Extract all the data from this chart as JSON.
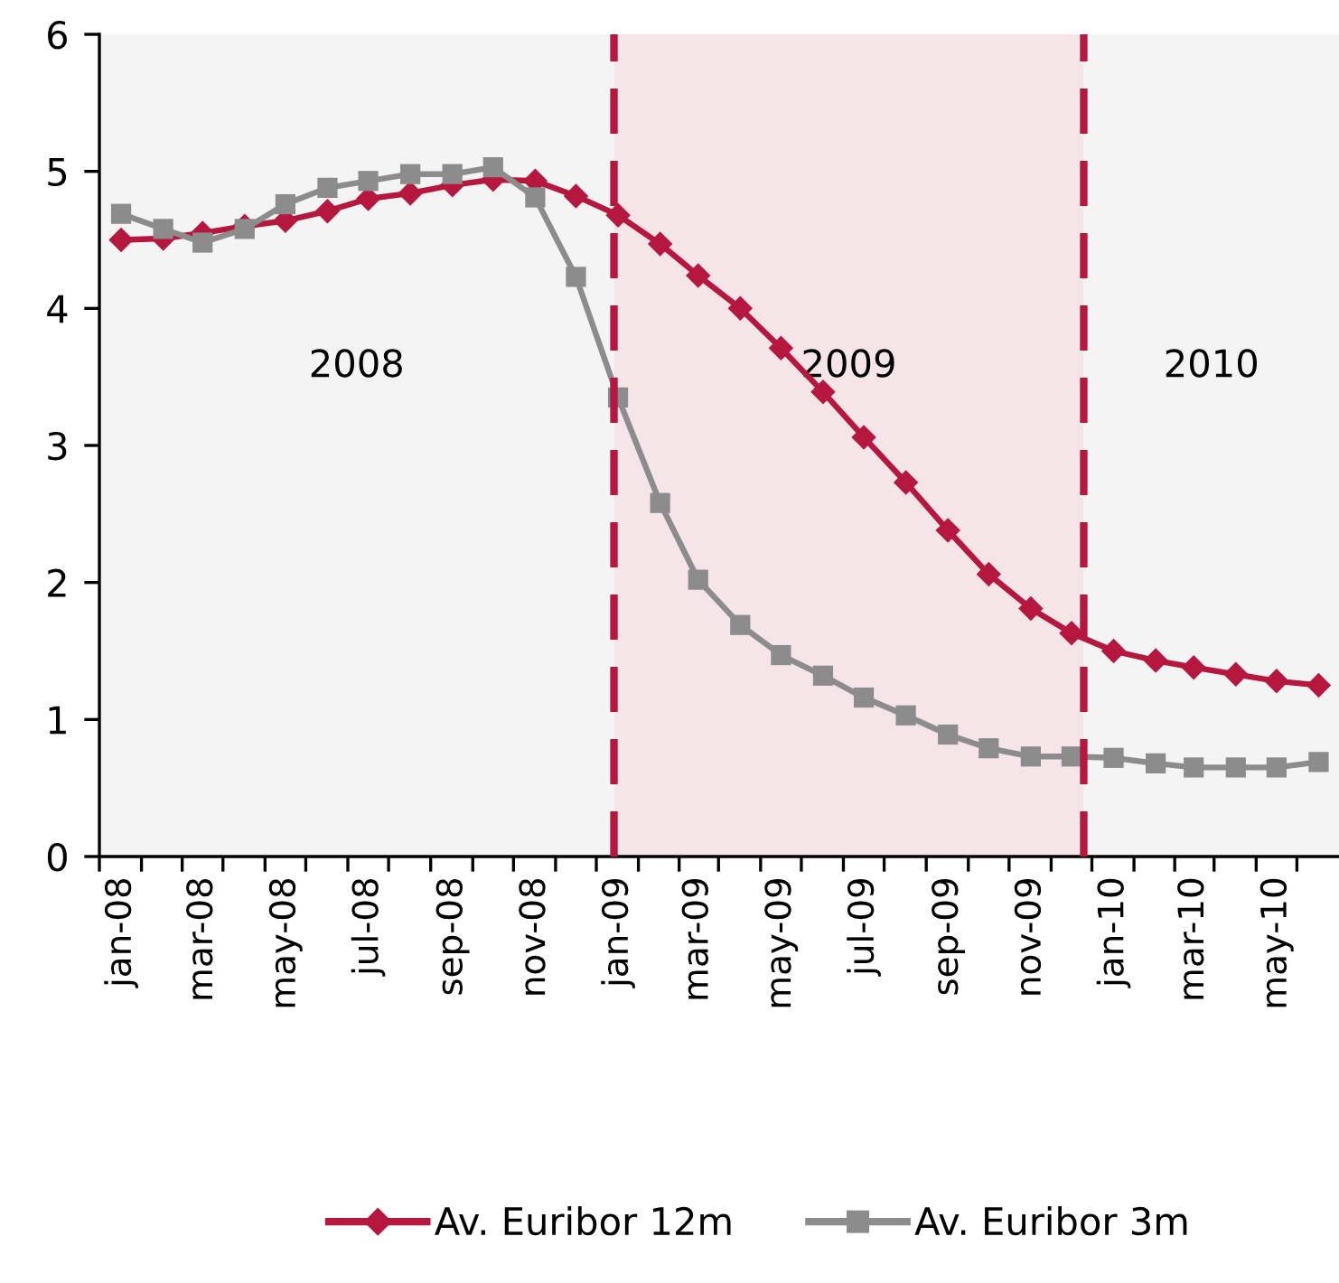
{
  "chart_data": {
    "type": "line",
    "x": [
      "2008-01",
      "2008-02",
      "2008-03",
      "2008-04",
      "2008-05",
      "2008-06",
      "2008-07",
      "2008-08",
      "2008-09",
      "2008-10",
      "2008-11",
      "2008-12",
      "2009-01",
      "2009-02",
      "2009-03",
      "2009-04",
      "2009-05",
      "2009-06",
      "2009-07",
      "2009-08",
      "2009-09",
      "2009-10",
      "2009-11",
      "2009-12",
      "2010-01",
      "2010-02",
      "2010-03",
      "2010-04",
      "2010-05",
      "2010-06"
    ],
    "series": [
      {
        "name": "Av. Euribor 12m",
        "color": "#b5173f",
        "marker": "diamond",
        "values": [
          4.5,
          4.51,
          4.55,
          4.6,
          4.64,
          4.71,
          4.8,
          4.84,
          4.9,
          4.94,
          4.93,
          4.82,
          4.68,
          4.47,
          4.24,
          4.0,
          3.71,
          3.39,
          3.06,
          2.73,
          2.38,
          2.06,
          1.81,
          1.63,
          1.5,
          1.43,
          1.38,
          1.33,
          1.28,
          1.25
        ]
      },
      {
        "name": "Av. Euribor 3m",
        "color": "#8c8c8c",
        "marker": "square",
        "values": [
          4.69,
          4.58,
          4.48,
          4.58,
          4.76,
          4.88,
          4.93,
          4.98,
          4.98,
          5.03,
          4.81,
          4.23,
          3.35,
          2.58,
          2.02,
          1.69,
          1.47,
          1.32,
          1.16,
          1.03,
          0.89,
          0.79,
          0.73,
          0.73,
          0.72,
          0.68,
          0.65,
          0.65,
          0.65,
          0.69
        ]
      }
    ],
    "xlim": [
      "2007-12-16",
      "2010-06-16"
    ],
    "xticks": [
      {
        "value": "2008-01",
        "label": "jan-08"
      },
      {
        "value": "2008-03",
        "label": "mar-08"
      },
      {
        "value": "2008-05",
        "label": "may-08"
      },
      {
        "value": "2008-07",
        "label": "jul-08"
      },
      {
        "value": "2008-09",
        "label": "sep-08"
      },
      {
        "value": "2008-11",
        "label": "nov-08"
      },
      {
        "value": "2009-01",
        "label": "jan-09"
      },
      {
        "value": "2009-03",
        "label": "mar-09"
      },
      {
        "value": "2009-05",
        "label": "may-09"
      },
      {
        "value": "2009-07",
        "label": "jul-09"
      },
      {
        "value": "2009-09",
        "label": "sep-09"
      },
      {
        "value": "2009-11",
        "label": "nov-09"
      },
      {
        "value": "2010-01",
        "label": "jan-10"
      },
      {
        "value": "2010-03",
        "label": "mar-10"
      },
      {
        "value": "2010-05",
        "label": "may-10"
      },
      {
        "value": "2007-12-16",
        "label": null
      },
      {
        "value": "2008-01-16",
        "label": null
      },
      {
        "value": "2008-02-15",
        "label": null
      },
      {
        "value": "2008-03-16",
        "label": null
      },
      {
        "value": "2008-04-16",
        "label": null
      },
      {
        "value": "2008-05-16",
        "label": null
      },
      {
        "value": "2008-06-16",
        "label": null
      },
      {
        "value": "2008-07-16",
        "label": null
      },
      {
        "value": "2008-08-16",
        "label": null
      },
      {
        "value": "2008-09-16",
        "label": null
      },
      {
        "value": "2008-10-16",
        "label": null
      },
      {
        "value": "2008-11-16",
        "label": null
      },
      {
        "value": "2008-12-16",
        "label": null
      },
      {
        "value": "2009-01-16",
        "label": null
      },
      {
        "value": "2009-02-15",
        "label": null
      },
      {
        "value": "2009-03-16",
        "label": null
      },
      {
        "value": "2009-04-16",
        "label": null
      },
      {
        "value": "2009-05-16",
        "label": null
      },
      {
        "value": "2009-06-16",
        "label": null
      },
      {
        "value": "2009-07-16",
        "label": null
      },
      {
        "value": "2009-08-16",
        "label": null
      },
      {
        "value": "2009-09-16",
        "label": null
      },
      {
        "value": "2009-10-16",
        "label": null
      },
      {
        "value": "2009-11-16",
        "label": null
      },
      {
        "value": "2009-12-16",
        "label": null
      },
      {
        "value": "2010-01-16",
        "label": null
      },
      {
        "value": "2010-02-15",
        "label": null
      },
      {
        "value": "2010-03-16",
        "label": null
      },
      {
        "value": "2010-04-16",
        "label": null
      },
      {
        "value": "2010-05-16",
        "label": null
      }
    ],
    "ylim": [
      0,
      6
    ],
    "yticks": [
      0,
      1,
      2,
      3,
      4,
      5,
      6
    ],
    "bands": [
      {
        "axis": "x",
        "from": "2007-12-16",
        "to": "2008-12-29",
        "label": "2008",
        "color": "#f4f4f4"
      },
      {
        "axis": "x",
        "from": "2008-12-29",
        "to": "2009-12-10",
        "label": "2009",
        "color": "#f5e5e9"
      },
      {
        "axis": "x",
        "from": "2009-12-10",
        "to": "2010-06-16",
        "label": "2010",
        "color": "#f4f4f4"
      }
    ],
    "ref_lines": [
      {
        "axis": "x",
        "value": "2008-12-29",
        "color": "#b5173f",
        "line_style": "dashed"
      },
      {
        "axis": "x",
        "value": "2009-12-10",
        "color": "#b5173f",
        "line_style": "dashed"
      }
    ],
    "legend": "bottom",
    "line_style": "solid"
  }
}
